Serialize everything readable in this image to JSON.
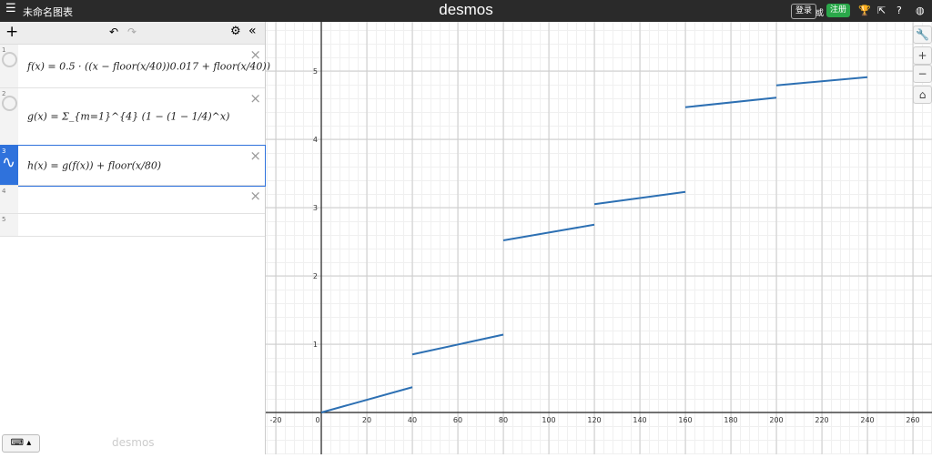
{
  "header": {
    "title": "未命名图表",
    "logo": "desmos",
    "login": "登录",
    "or": "或",
    "signup": "注册"
  },
  "expressions": [
    {
      "index": 1,
      "text": "f(x) = 0.5 · ((x − floor(x/40))0.017 + floor(x/40))"
    },
    {
      "index": 2,
      "text": "g(x) = Σ_{m=1}^{4} (1 − (1 − 1/4)^x)"
    },
    {
      "index": 3,
      "text": "h(x) = g(f(x)) + floor(x/80)"
    },
    {
      "index": 4
    },
    {
      "index": 5
    }
  ],
  "footer": {
    "brand": "desmos"
  },
  "chart_data": {
    "type": "line",
    "xlim": [
      -24.4,
      268.4
    ],
    "ylim": [
      -0.613,
      5.72
    ],
    "xticks": [
      -20,
      0,
      20,
      40,
      60,
      80,
      100,
      120,
      140,
      160,
      180,
      200,
      220,
      240,
      260
    ],
    "yticks": [
      1,
      2,
      3,
      4,
      5
    ],
    "grid": true,
    "series": [
      {
        "color": "#2d70b3",
        "x": [
          0,
          40
        ],
        "values": [
          0,
          0.37
        ]
      },
      {
        "color": "#2d70b3",
        "x": [
          40,
          80
        ],
        "values": [
          0.85,
          1.14
        ]
      },
      {
        "color": "#2d70b3",
        "x": [
          80,
          120
        ],
        "values": [
          2.52,
          2.75
        ]
      },
      {
        "color": "#2d70b3",
        "x": [
          120,
          160
        ],
        "values": [
          3.05,
          3.23
        ]
      },
      {
        "color": "#2d70b3",
        "x": [
          160,
          200
        ],
        "values": [
          4.47,
          4.61
        ]
      },
      {
        "color": "#2d70b3",
        "x": [
          200,
          240
        ],
        "values": [
          4.79,
          4.91
        ]
      }
    ]
  }
}
